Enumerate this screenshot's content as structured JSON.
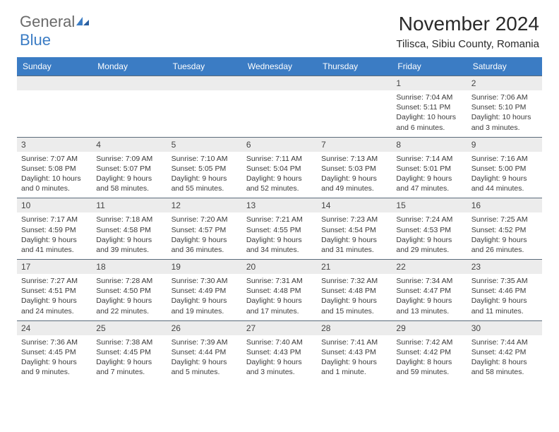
{
  "brand": {
    "part1": "General",
    "part2": "Blue"
  },
  "title": "November 2024",
  "location": "Tilisca, Sibiu County, Romania",
  "colors": {
    "header_bg": "#3b7cc4",
    "daynum_bg": "#ececec",
    "border": "#5a6a7a",
    "text": "#333333"
  },
  "weekdays": [
    "Sunday",
    "Monday",
    "Tuesday",
    "Wednesday",
    "Thursday",
    "Friday",
    "Saturday"
  ],
  "weeks": [
    [
      null,
      null,
      null,
      null,
      null,
      {
        "n": "1",
        "sr": "Sunrise: 7:04 AM",
        "ss": "Sunset: 5:11 PM",
        "dl": "Daylight: 10 hours and 6 minutes."
      },
      {
        "n": "2",
        "sr": "Sunrise: 7:06 AM",
        "ss": "Sunset: 5:10 PM",
        "dl": "Daylight: 10 hours and 3 minutes."
      }
    ],
    [
      {
        "n": "3",
        "sr": "Sunrise: 7:07 AM",
        "ss": "Sunset: 5:08 PM",
        "dl": "Daylight: 10 hours and 0 minutes."
      },
      {
        "n": "4",
        "sr": "Sunrise: 7:09 AM",
        "ss": "Sunset: 5:07 PM",
        "dl": "Daylight: 9 hours and 58 minutes."
      },
      {
        "n": "5",
        "sr": "Sunrise: 7:10 AM",
        "ss": "Sunset: 5:05 PM",
        "dl": "Daylight: 9 hours and 55 minutes."
      },
      {
        "n": "6",
        "sr": "Sunrise: 7:11 AM",
        "ss": "Sunset: 5:04 PM",
        "dl": "Daylight: 9 hours and 52 minutes."
      },
      {
        "n": "7",
        "sr": "Sunrise: 7:13 AM",
        "ss": "Sunset: 5:03 PM",
        "dl": "Daylight: 9 hours and 49 minutes."
      },
      {
        "n": "8",
        "sr": "Sunrise: 7:14 AM",
        "ss": "Sunset: 5:01 PM",
        "dl": "Daylight: 9 hours and 47 minutes."
      },
      {
        "n": "9",
        "sr": "Sunrise: 7:16 AM",
        "ss": "Sunset: 5:00 PM",
        "dl": "Daylight: 9 hours and 44 minutes."
      }
    ],
    [
      {
        "n": "10",
        "sr": "Sunrise: 7:17 AM",
        "ss": "Sunset: 4:59 PM",
        "dl": "Daylight: 9 hours and 41 minutes."
      },
      {
        "n": "11",
        "sr": "Sunrise: 7:18 AM",
        "ss": "Sunset: 4:58 PM",
        "dl": "Daylight: 9 hours and 39 minutes."
      },
      {
        "n": "12",
        "sr": "Sunrise: 7:20 AM",
        "ss": "Sunset: 4:57 PM",
        "dl": "Daylight: 9 hours and 36 minutes."
      },
      {
        "n": "13",
        "sr": "Sunrise: 7:21 AM",
        "ss": "Sunset: 4:55 PM",
        "dl": "Daylight: 9 hours and 34 minutes."
      },
      {
        "n": "14",
        "sr": "Sunrise: 7:23 AM",
        "ss": "Sunset: 4:54 PM",
        "dl": "Daylight: 9 hours and 31 minutes."
      },
      {
        "n": "15",
        "sr": "Sunrise: 7:24 AM",
        "ss": "Sunset: 4:53 PM",
        "dl": "Daylight: 9 hours and 29 minutes."
      },
      {
        "n": "16",
        "sr": "Sunrise: 7:25 AM",
        "ss": "Sunset: 4:52 PM",
        "dl": "Daylight: 9 hours and 26 minutes."
      }
    ],
    [
      {
        "n": "17",
        "sr": "Sunrise: 7:27 AM",
        "ss": "Sunset: 4:51 PM",
        "dl": "Daylight: 9 hours and 24 minutes."
      },
      {
        "n": "18",
        "sr": "Sunrise: 7:28 AM",
        "ss": "Sunset: 4:50 PM",
        "dl": "Daylight: 9 hours and 22 minutes."
      },
      {
        "n": "19",
        "sr": "Sunrise: 7:30 AM",
        "ss": "Sunset: 4:49 PM",
        "dl": "Daylight: 9 hours and 19 minutes."
      },
      {
        "n": "20",
        "sr": "Sunrise: 7:31 AM",
        "ss": "Sunset: 4:48 PM",
        "dl": "Daylight: 9 hours and 17 minutes."
      },
      {
        "n": "21",
        "sr": "Sunrise: 7:32 AM",
        "ss": "Sunset: 4:48 PM",
        "dl": "Daylight: 9 hours and 15 minutes."
      },
      {
        "n": "22",
        "sr": "Sunrise: 7:34 AM",
        "ss": "Sunset: 4:47 PM",
        "dl": "Daylight: 9 hours and 13 minutes."
      },
      {
        "n": "23",
        "sr": "Sunrise: 7:35 AM",
        "ss": "Sunset: 4:46 PM",
        "dl": "Daylight: 9 hours and 11 minutes."
      }
    ],
    [
      {
        "n": "24",
        "sr": "Sunrise: 7:36 AM",
        "ss": "Sunset: 4:45 PM",
        "dl": "Daylight: 9 hours and 9 minutes."
      },
      {
        "n": "25",
        "sr": "Sunrise: 7:38 AM",
        "ss": "Sunset: 4:45 PM",
        "dl": "Daylight: 9 hours and 7 minutes."
      },
      {
        "n": "26",
        "sr": "Sunrise: 7:39 AM",
        "ss": "Sunset: 4:44 PM",
        "dl": "Daylight: 9 hours and 5 minutes."
      },
      {
        "n": "27",
        "sr": "Sunrise: 7:40 AM",
        "ss": "Sunset: 4:43 PM",
        "dl": "Daylight: 9 hours and 3 minutes."
      },
      {
        "n": "28",
        "sr": "Sunrise: 7:41 AM",
        "ss": "Sunset: 4:43 PM",
        "dl": "Daylight: 9 hours and 1 minute."
      },
      {
        "n": "29",
        "sr": "Sunrise: 7:42 AM",
        "ss": "Sunset: 4:42 PM",
        "dl": "Daylight: 8 hours and 59 minutes."
      },
      {
        "n": "30",
        "sr": "Sunrise: 7:44 AM",
        "ss": "Sunset: 4:42 PM",
        "dl": "Daylight: 8 hours and 58 minutes."
      }
    ]
  ]
}
